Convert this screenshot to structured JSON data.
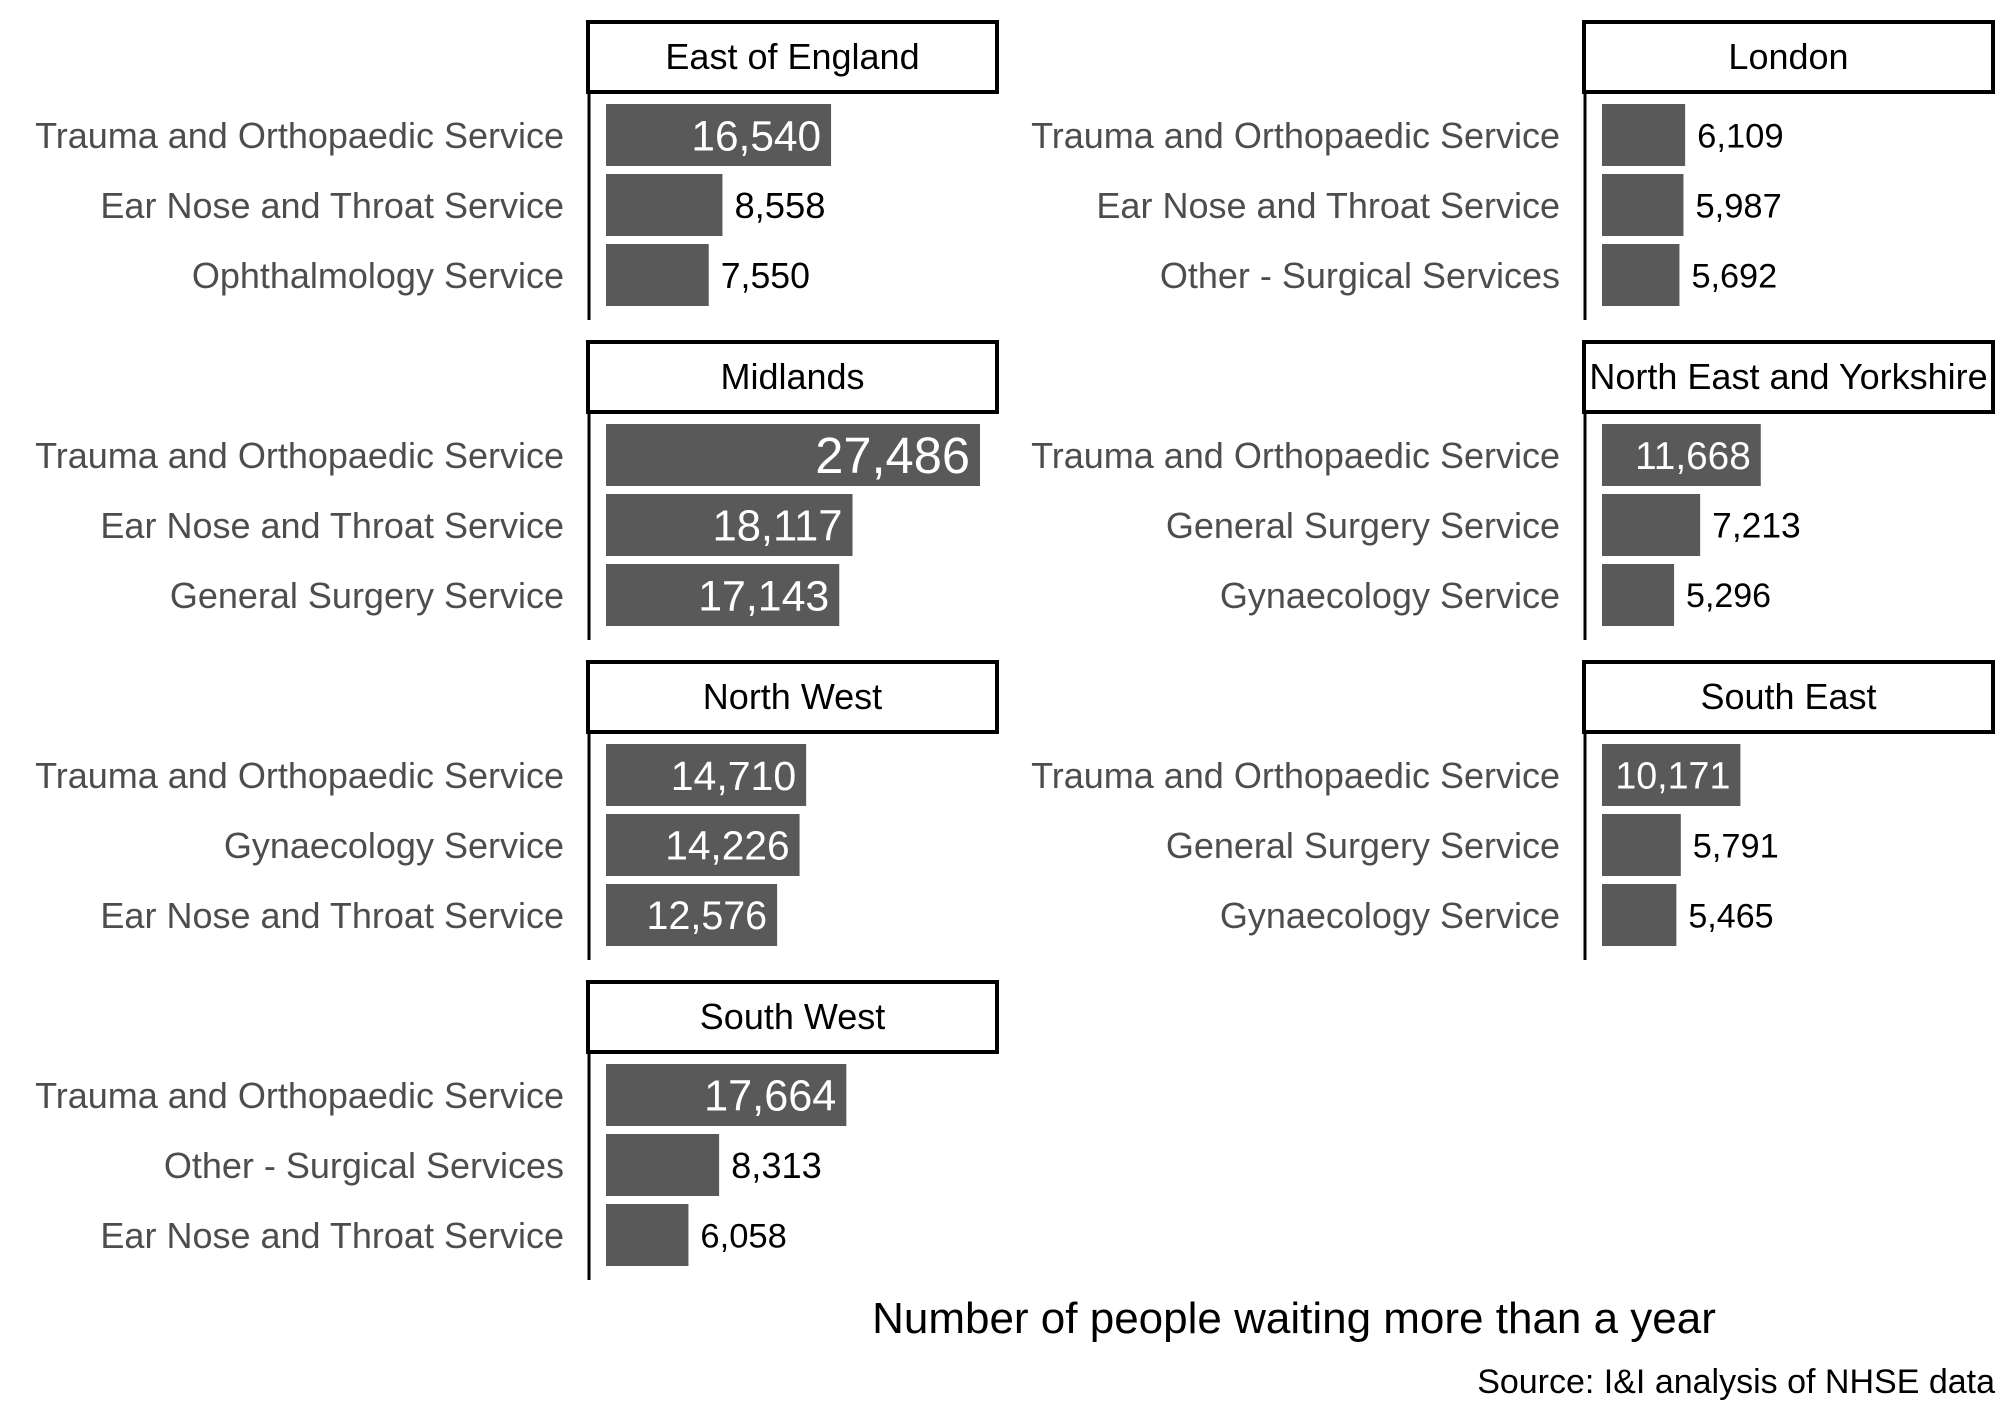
{
  "chart_data": {
    "type": "bar",
    "orientation": "horizontal",
    "xlabel": "Number of people waiting more than a year",
    "caption": "Source: I&I analysis of NHSE data",
    "bar_color": "#595959",
    "label_color_inside": "#ffffff",
    "label_color_outside": "#000000",
    "xlim": [
      0,
      28000
    ],
    "grid": false,
    "panels": [
      {
        "title": "East of England",
        "categories": [
          "Trauma and Orthopaedic Service",
          "Ear Nose and Throat Service",
          "Ophthalmology Service"
        ],
        "values": [
          16540,
          8558,
          7550
        ],
        "labels": [
          "16,540",
          "8,558",
          "7,550"
        ]
      },
      {
        "title": "London",
        "categories": [
          "Trauma and Orthopaedic Service",
          "Ear Nose and Throat Service",
          "Other - Surgical Services"
        ],
        "values": [
          6109,
          5987,
          5692
        ],
        "labels": [
          "6,109",
          "5,987",
          "5,692"
        ]
      },
      {
        "title": "Midlands",
        "categories": [
          "Trauma and Orthopaedic Service",
          "Ear Nose and Throat Service",
          "General Surgery Service"
        ],
        "values": [
          27486,
          18117,
          17143
        ],
        "labels": [
          "27,486",
          "18,117",
          "17,143"
        ]
      },
      {
        "title": "North East and Yorkshire",
        "categories": [
          "Trauma and Orthopaedic Service",
          "General Surgery Service",
          "Gynaecology Service"
        ],
        "values": [
          11668,
          7213,
          5296
        ],
        "labels": [
          "11,668",
          "7,213",
          "5,296"
        ]
      },
      {
        "title": "North West",
        "categories": [
          "Trauma and Orthopaedic Service",
          "Gynaecology Service",
          "Ear Nose and Throat Service"
        ],
        "values": [
          14710,
          14226,
          12576
        ],
        "labels": [
          "14,710",
          "14,226",
          "12,576"
        ]
      },
      {
        "title": "South East",
        "categories": [
          "Trauma and Orthopaedic Service",
          "General Surgery Service",
          "Gynaecology Service"
        ],
        "values": [
          10171,
          5791,
          5465
        ],
        "labels": [
          "10,171",
          "5,791",
          "5,465"
        ]
      },
      {
        "title": "South West",
        "categories": [
          "Trauma and Orthopaedic Service",
          "Other - Surgical Services",
          "Ear Nose and Throat Service"
        ],
        "values": [
          17664,
          8313,
          6058
        ],
        "labels": [
          "17,664",
          "8,313",
          "6,058"
        ]
      }
    ]
  }
}
